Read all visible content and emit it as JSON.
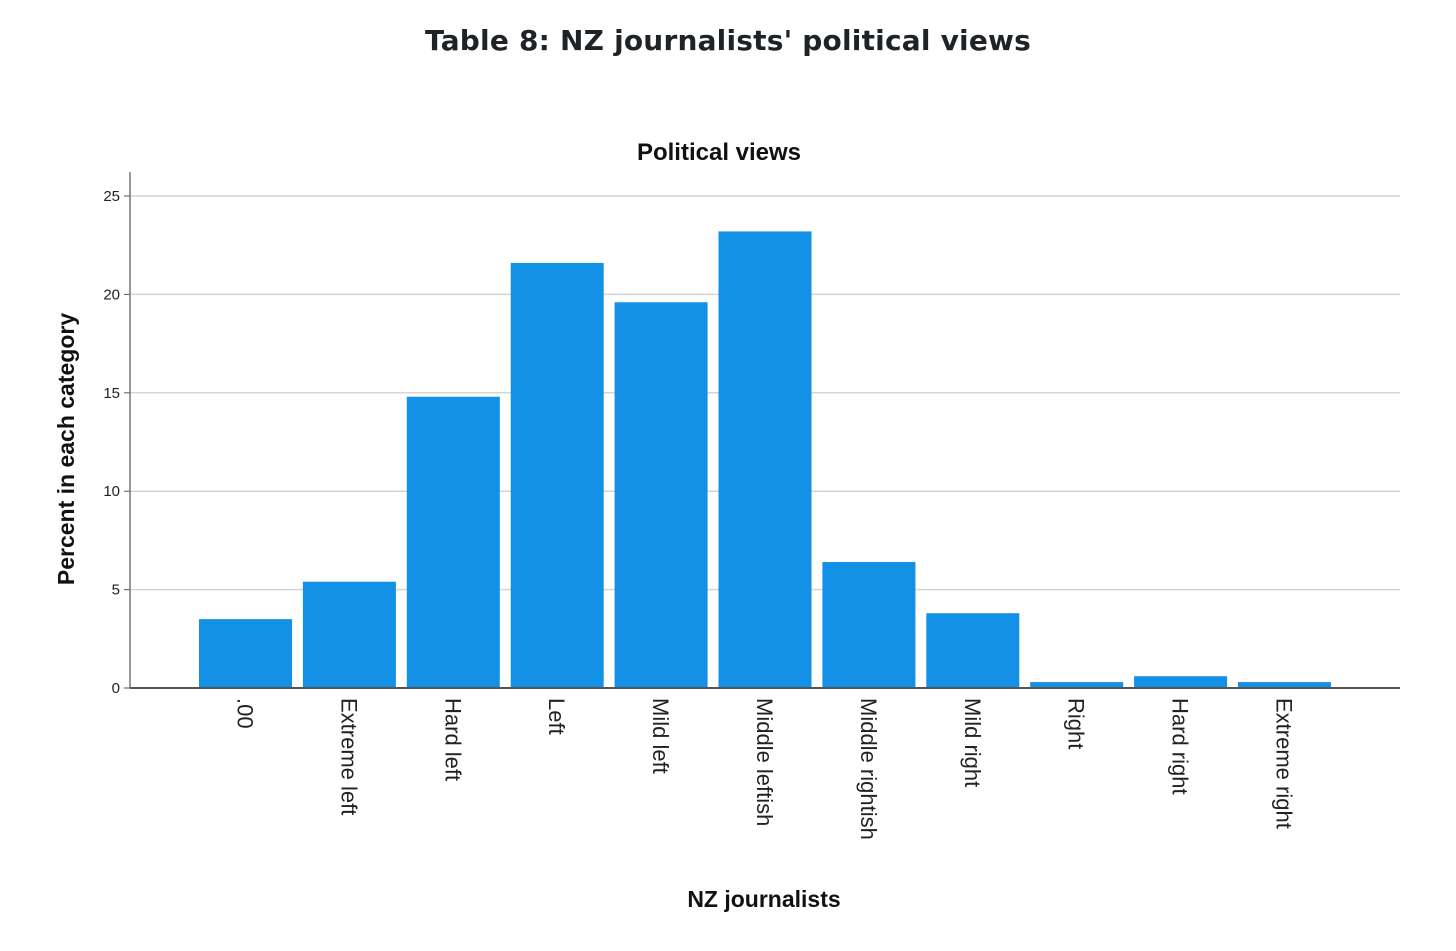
{
  "page": {
    "heading": "Table 8: NZ journalists' political views"
  },
  "chart_data": {
    "type": "bar",
    "title": "Political views",
    "xlabel": "NZ journalists",
    "ylabel": "Percent in each category",
    "categories": [
      ".00",
      "Extreme left",
      "Hard left",
      "Left",
      "Mild left",
      "Middle leftish",
      "Middle rightish",
      "Mild right",
      "Right",
      "Hard right",
      "Extreme right"
    ],
    "values": [
      3.5,
      5.4,
      14.8,
      21.6,
      19.6,
      23.2,
      6.4,
      3.8,
      0.3,
      0.6,
      0.3
    ],
    "ylim": [
      0,
      25
    ],
    "yticks": [
      0,
      5,
      10,
      15,
      20,
      25
    ],
    "grid": true,
    "bar_color": "#1391e6"
  }
}
